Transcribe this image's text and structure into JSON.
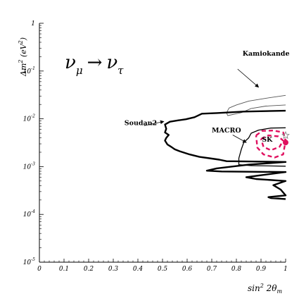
{
  "chart_data": {
    "type": "line",
    "title": "",
    "process_label": {
      "nu_left": "ν",
      "sub_left": "μ",
      "arrow": "→",
      "nu_right": "ν",
      "sub_right": "τ"
    },
    "xlabel": {
      "base": "sin",
      "sup": "2",
      "rest": " 2θ",
      "sub": "m"
    },
    "ylabel": {
      "base": "Δm",
      "sup": "2",
      "unit_open": " (eV",
      "unit_sup": "2",
      "unit_close": ")"
    },
    "xlim": [
      0,
      1
    ],
    "ylim": [
      1e-05,
      1
    ],
    "y_scale": "log",
    "x_ticks": [
      "0",
      "0.1",
      "0.2",
      "0.3",
      "0.4",
      "0.5",
      "0.6",
      "0.7",
      "0.8",
      "0.9",
      "1"
    ],
    "y_ticks": [
      {
        "base": "10",
        "exp": "-5",
        "value": 1e-05
      },
      {
        "base": "10",
        "exp": "-4",
        "value": 0.0001
      },
      {
        "base": "10",
        "exp": "-3",
        "value": 0.001
      },
      {
        "base": "10",
        "exp": "-2",
        "value": 0.01
      },
      {
        "base": "10",
        "exp": "-1",
        "value": 0.1
      },
      {
        "base": "1",
        "exp": "",
        "value": 1
      }
    ],
    "series": [
      {
        "name": "Kamiokande",
        "color": "#555555",
        "style": "thin",
        "points": [
          [
            1.0,
            0.0195
          ],
          [
            0.92,
            0.0185
          ],
          [
            0.86,
            0.0165
          ],
          [
            0.82,
            0.0135
          ],
          [
            0.765,
            0.0117
          ],
          [
            0.76,
            0.0133
          ],
          [
            0.77,
            0.0168
          ],
          [
            0.8,
            0.0195
          ],
          [
            0.85,
            0.0235
          ],
          [
            0.92,
            0.027
          ],
          [
            1.0,
            0.031
          ]
        ]
      },
      {
        "name": "Soudan2",
        "color": "#000000",
        "style": "thick",
        "points": [
          [
            1.0,
            0.0148
          ],
          [
            0.83,
            0.0142
          ],
          [
            0.72,
            0.0132
          ],
          [
            0.66,
            0.0128
          ],
          [
            0.63,
            0.0108
          ],
          [
            0.595,
            0.0098
          ],
          [
            0.565,
            0.0093
          ],
          [
            0.53,
            0.0087
          ],
          [
            0.51,
            0.0076
          ],
          [
            0.515,
            0.0062
          ],
          [
            0.51,
            0.0052
          ],
          [
            0.525,
            0.0046
          ],
          [
            0.515,
            0.004
          ],
          [
            0.51,
            0.0035
          ],
          [
            0.52,
            0.0029
          ],
          [
            0.535,
            0.0026
          ],
          [
            0.55,
            0.0023
          ],
          [
            0.57,
            0.0021
          ],
          [
            0.61,
            0.0018
          ],
          [
            0.65,
            0.0016
          ],
          [
            0.69,
            0.0015
          ],
          [
            0.73,
            0.0014
          ],
          [
            0.76,
            0.0013
          ],
          [
            1.0,
            0.00125
          ],
          [
            0.85,
            0.0011
          ],
          [
            0.78,
            0.001
          ],
          [
            0.72,
            0.00092
          ],
          [
            0.68,
            0.00082
          ],
          [
            0.74,
            0.00079
          ],
          [
            1.0,
            0.00077
          ],
          [
            0.89,
            0.00065
          ],
          [
            0.84,
            0.0006
          ],
          [
            0.88,
            0.00055
          ],
          [
            1.0,
            0.0005
          ],
          [
            0.95,
            0.00041
          ],
          [
            0.98,
            0.00033
          ],
          [
            1.0,
            0.00025
          ],
          [
            0.93,
            0.00023
          ],
          [
            0.94,
            0.00022
          ],
          [
            1.0,
            0.00021
          ]
        ]
      },
      {
        "name": "MACRO",
        "color": "#000000",
        "style": "medium",
        "points": [
          [
            1.0,
            0.0065
          ],
          [
            0.94,
            0.0064
          ],
          [
            0.89,
            0.0058
          ],
          [
            0.86,
            0.005
          ],
          [
            0.85,
            0.004
          ],
          [
            0.83,
            0.0032
          ],
          [
            0.82,
            0.0023
          ],
          [
            0.81,
            0.0015
          ],
          [
            0.81,
            0.0011
          ],
          [
            0.86,
            0.00105
          ],
          [
            1.0,
            0.00102
          ]
        ]
      },
      {
        "name": "SK",
        "color": "#e0105f",
        "style": "dashed",
        "points": [
          [
            0.88,
            0.0045
          ],
          [
            0.905,
            0.0056
          ],
          [
            0.95,
            0.0057
          ],
          [
            0.99,
            0.0052
          ],
          [
            1.0,
            0.0035
          ],
          [
            0.99,
            0.0018
          ],
          [
            0.955,
            0.00155
          ],
          [
            0.91,
            0.0018
          ],
          [
            0.885,
            0.0025
          ],
          [
            0.88,
            0.0045
          ]
        ]
      },
      {
        "name": "SK",
        "color": "#e0105f",
        "style": "dashed",
        "points": [
          [
            0.9,
            0.0038
          ],
          [
            0.93,
            0.0045
          ],
          [
            0.97,
            0.0043
          ],
          [
            0.99,
            0.0035
          ],
          [
            0.975,
            0.0026
          ],
          [
            0.94,
            0.0022
          ],
          [
            0.91,
            0.0026
          ],
          [
            0.9,
            0.0038
          ]
        ]
      }
    ],
    "best_fit": {
      "x": 1.0,
      "y": 0.0032,
      "color": "#e0105f"
    },
    "star": {
      "x": 1.0,
      "y": 0.0045,
      "color": "#888888"
    },
    "annotations": [
      {
        "text": "Kamiokande",
        "anchor": [
          0.825,
          0.21
        ],
        "arrow_from": [
          0.805,
          0.11
        ],
        "arrow_to": [
          0.89,
          0.046
        ]
      },
      {
        "text": "Soudan2",
        "anchor": [
          0.345,
          0.0074
        ],
        "arrow_from": [
          0.425,
          0.0072
        ],
        "arrow_to": [
          0.505,
          0.0088
        ]
      },
      {
        "text": "MACRO",
        "anchor": [
          0.7,
          0.0052
        ],
        "arrow_from": [
          0.785,
          0.0046
        ],
        "arrow_to": [
          0.84,
          0.0032
        ]
      },
      {
        "text": "SK",
        "anchor": [
          0.925,
          0.0033
        ]
      }
    ]
  }
}
